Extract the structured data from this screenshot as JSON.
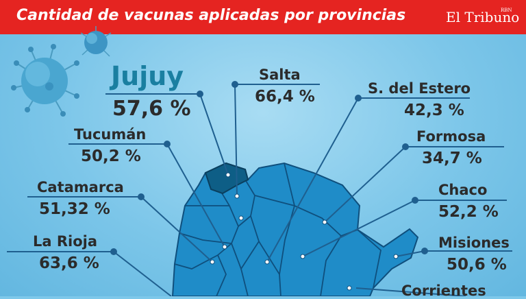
{
  "header": {
    "title": "Cantidad de vacunas aplicadas por provincias",
    "logo": "El Tribuno",
    "logo_sup": "RBN"
  },
  "provinces": [
    {
      "name": "Jujuy",
      "value": "57,6 %"
    },
    {
      "name": "Salta",
      "value": "66,4 %"
    },
    {
      "name": "S. del Estero",
      "value": "42,3 %"
    },
    {
      "name": "Tucumán",
      "value": "50,2 %"
    },
    {
      "name": "Formosa",
      "value": "34,7 %"
    },
    {
      "name": "Catamarca",
      "value": "51,32 %"
    },
    {
      "name": "Chaco",
      "value": "52,2 %"
    },
    {
      "name": "La Rioja",
      "value": "63,6 %"
    },
    {
      "name": "Misiones",
      "value": "50,6 %"
    },
    {
      "name": "Corrientes",
      "value": ""
    }
  ],
  "colors": {
    "header": "#e52421",
    "background": "#7ec8ea",
    "map_fill": "#1f8cc8",
    "highlight": "#0e5e86",
    "line": "#1f5f8f"
  }
}
